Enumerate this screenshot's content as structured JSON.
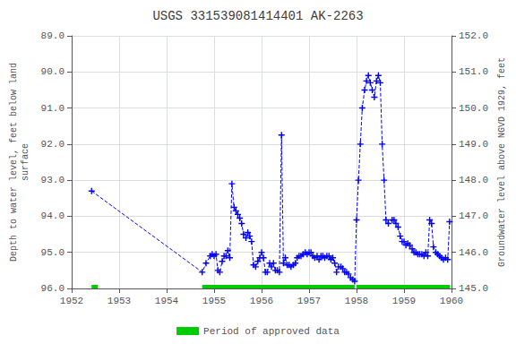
{
  "chart_data": {
    "type": "line",
    "title": "USGS 331539081414401 AK-2263",
    "ylabel": "Depth to water level, feet below land\nsurface",
    "y2label": "Groundwater level above NGVD 1929, feet",
    "xlim": [
      1952.0,
      1960.0
    ],
    "xticks": [
      1952,
      1953,
      1954,
      1955,
      1956,
      1957,
      1958,
      1959,
      1960
    ],
    "ylim": [
      96.0,
      89.0
    ],
    "yticks": [
      {
        "value": 89.0,
        "label": "89.0"
      },
      {
        "value": 90.0,
        "label": "90.0"
      },
      {
        "value": 91.0,
        "label": "91.0"
      },
      {
        "value": 92.0,
        "label": "92.0"
      },
      {
        "value": 93.0,
        "label": "93.0"
      },
      {
        "value": 94.0,
        "label": "94.0"
      },
      {
        "value": 95.0,
        "label": "95.0"
      },
      {
        "value": 96.0,
        "label": "96.0"
      }
    ],
    "y2lim": [
      145.0,
      152.0
    ],
    "y2ticks": [
      {
        "value": 145.0,
        "label": "145.0"
      },
      {
        "value": 146.0,
        "label": "146.0"
      },
      {
        "value": 147.0,
        "label": "147.0"
      },
      {
        "value": 148.0,
        "label": "148.0"
      },
      {
        "value": 149.0,
        "label": "149.0"
      },
      {
        "value": 150.0,
        "label": "150.0"
      },
      {
        "value": 151.0,
        "label": "151.0"
      },
      {
        "value": 152.0,
        "label": "152.0"
      }
    ],
    "grid": true,
    "legend": "bottom",
    "color": "#0000ff",
    "marker": "plus",
    "line_style": "dashed",
    "x": [
      1952.42,
      1954.75,
      1954.83,
      1954.92,
      1954.96,
      1955.0,
      1955.04,
      1955.08,
      1955.12,
      1955.17,
      1955.21,
      1955.25,
      1955.29,
      1955.33,
      1955.375,
      1955.42,
      1955.46,
      1955.5,
      1955.54,
      1955.58,
      1955.62,
      1955.67,
      1955.71,
      1955.75,
      1955.79,
      1955.83,
      1955.875,
      1955.92,
      1955.96,
      1956.0,
      1956.04,
      1956.08,
      1956.12,
      1956.17,
      1956.21,
      1956.25,
      1956.29,
      1956.33,
      1956.375,
      1956.42,
      1956.46,
      1956.5,
      1956.54,
      1956.58,
      1956.62,
      1956.67,
      1956.71,
      1956.75,
      1956.79,
      1956.83,
      1956.875,
      1956.92,
      1956.96,
      1957.0,
      1957.04,
      1957.08,
      1957.12,
      1957.17,
      1957.21,
      1957.25,
      1957.29,
      1957.33,
      1957.375,
      1957.42,
      1957.46,
      1957.5,
      1957.54,
      1957.58,
      1957.62,
      1957.67,
      1957.71,
      1957.75,
      1957.79,
      1957.83,
      1957.875,
      1957.92,
      1957.96,
      1958.0,
      1958.04,
      1958.08,
      1958.12,
      1958.17,
      1958.21,
      1958.25,
      1958.29,
      1958.33,
      1958.375,
      1958.42,
      1958.46,
      1958.5,
      1958.54,
      1958.58,
      1958.62,
      1958.67,
      1958.75,
      1958.79,
      1958.83,
      1958.875,
      1958.92,
      1958.96,
      1959.0,
      1959.04,
      1959.08,
      1959.12,
      1959.17,
      1959.21,
      1959.25,
      1959.29,
      1959.33,
      1959.375,
      1959.42,
      1959.46,
      1959.5,
      1959.54,
      1959.58,
      1959.62,
      1959.67,
      1959.71,
      1959.75,
      1959.79,
      1959.83,
      1959.875,
      1959.92,
      1959.96
    ],
    "values": [
      93.3,
      95.55,
      95.3,
      95.1,
      95.05,
      95.1,
      95.05,
      95.5,
      95.55,
      95.25,
      95.1,
      95.1,
      94.95,
      95.15,
      93.1,
      93.75,
      93.85,
      93.95,
      94.05,
      94.2,
      94.5,
      94.6,
      94.45,
      94.55,
      94.7,
      95.35,
      95.4,
      95.25,
      95.15,
      95.0,
      95.15,
      95.55,
      95.55,
      95.3,
      95.4,
      95.3,
      95.5,
      95.5,
      95.55,
      91.75,
      95.3,
      95.15,
      95.35,
      95.35,
      95.4,
      95.35,
      95.3,
      95.15,
      95.1,
      95.1,
      95.05,
      95.0,
      95.05,
      95.0,
      95.0,
      95.1,
      95.15,
      95.1,
      95.2,
      95.1,
      95.1,
      95.15,
      95.1,
      95.1,
      95.2,
      95.15,
      95.3,
      95.55,
      95.4,
      95.4,
      95.45,
      95.55,
      95.55,
      95.6,
      95.7,
      95.75,
      95.8,
      94.1,
      93.0,
      92.0,
      91.0,
      90.5,
      90.25,
      90.1,
      90.3,
      90.5,
      90.7,
      90.25,
      90.1,
      90.3,
      92.0,
      93.0,
      94.1,
      94.2,
      94.1,
      94.1,
      94.2,
      94.3,
      94.55,
      94.7,
      94.7,
      94.8,
      94.75,
      94.8,
      94.9,
      95.0,
      95.0,
      95.05,
      95.05,
      95.05,
      95.1,
      95.0,
      95.1,
      94.1,
      94.2,
      94.85,
      95.0,
      95.05,
      95.1,
      95.15,
      95.2,
      95.15,
      95.2,
      94.15
    ],
    "approved_periods": {
      "label": "Period of approved data",
      "color": "#00cc00",
      "segments": [
        [
          1952.42,
          1952.55
        ],
        [
          1954.75,
          1957.96
        ],
        [
          1958.0,
          1959.97
        ]
      ]
    }
  }
}
